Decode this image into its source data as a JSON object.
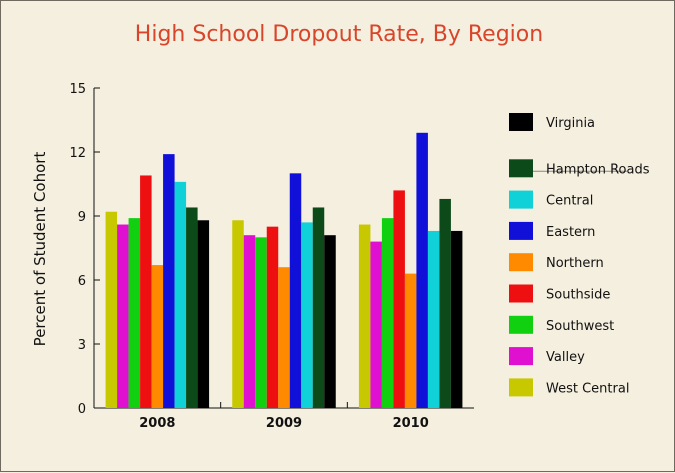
{
  "chart_data": {
    "type": "bar",
    "title": "High School Dropout Rate, By Region",
    "ylabel": "Percent of Student Cohort",
    "xlabel": "",
    "ylim": [
      0,
      15
    ],
    "yticks": [
      "0",
      "3",
      "6",
      "9",
      "12",
      "15"
    ],
    "categories": [
      "2008",
      "2009",
      "2010"
    ],
    "grid": false,
    "legend_position": "right",
    "series": [
      {
        "name": "West Central",
        "color": "#c8c800",
        "values": [
          9.2,
          8.8,
          8.6
        ]
      },
      {
        "name": "Valley",
        "color": "#e010d0",
        "values": [
          8.6,
          8.1,
          7.8
        ]
      },
      {
        "name": "Southwest",
        "color": "#10d010",
        "values": [
          8.9,
          8.0,
          8.9
        ]
      },
      {
        "name": "Southside",
        "color": "#ee1010",
        "values": [
          10.9,
          8.5,
          10.2
        ]
      },
      {
        "name": "Northern",
        "color": "#ff8a00",
        "values": [
          6.7,
          6.6,
          6.3
        ]
      },
      {
        "name": "Eastern",
        "color": "#1010d8",
        "values": [
          11.9,
          11.0,
          12.9
        ]
      },
      {
        "name": "Central",
        "color": "#10d0d8",
        "values": [
          10.6,
          8.7,
          8.3
        ]
      },
      {
        "name": "Hampton Roads",
        "color": "#0d4a1a",
        "values": [
          9.4,
          9.4,
          9.8
        ]
      },
      {
        "name": "Virginia",
        "color": "#000000",
        "values": [
          8.8,
          8.1,
          8.3
        ]
      }
    ],
    "legend_order": [
      "Virginia",
      "Hampton Roads",
      "Central",
      "Eastern",
      "Northern",
      "Southside",
      "Southwest",
      "Valley",
      "West Central"
    ]
  }
}
